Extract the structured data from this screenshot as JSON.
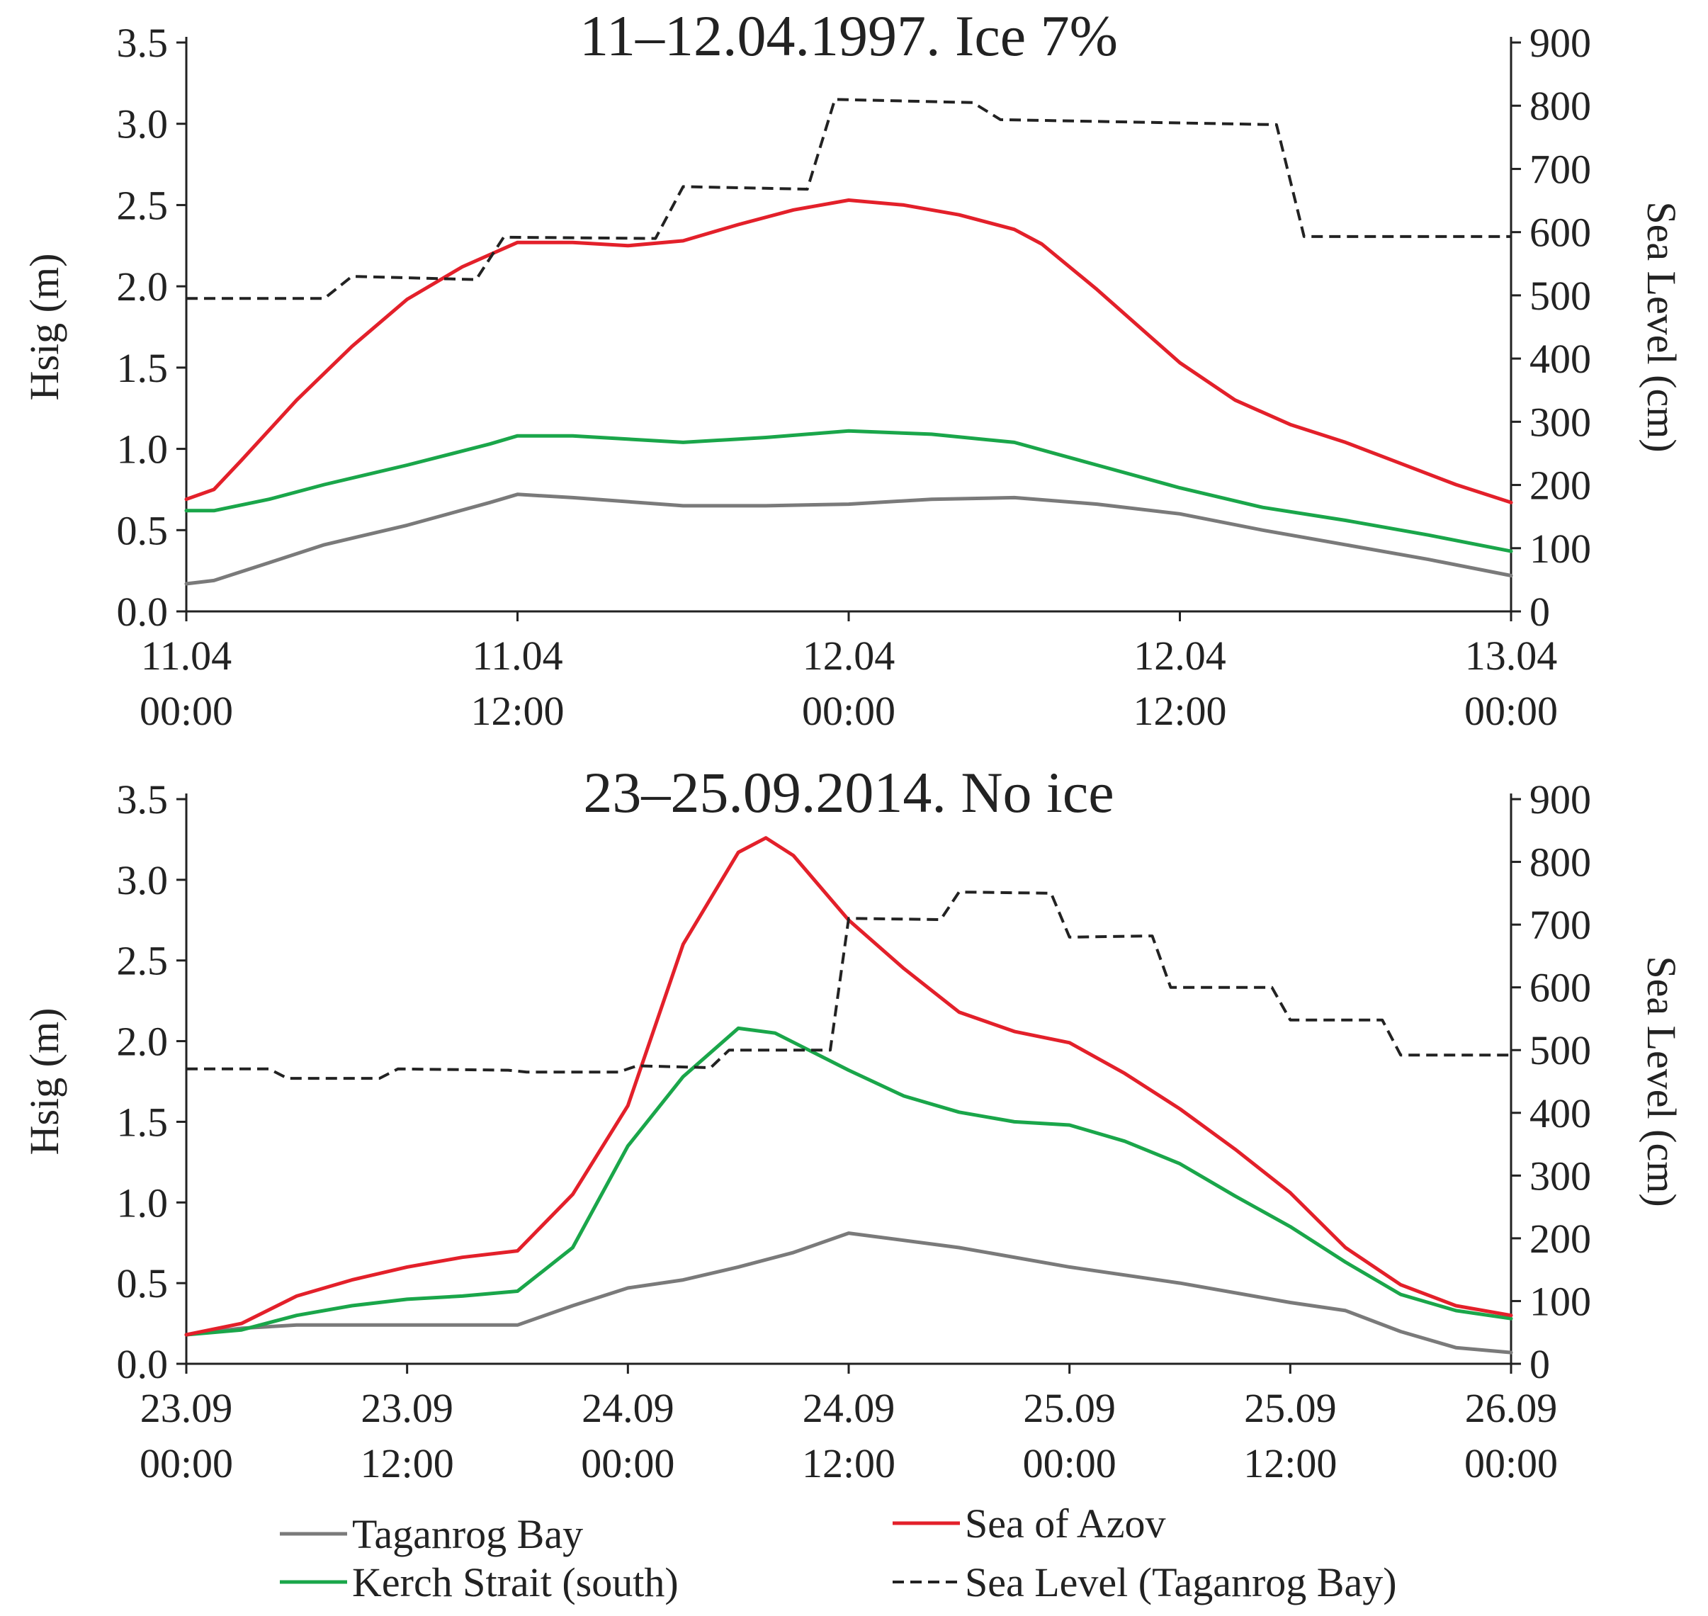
{
  "chart_data": [
    {
      "type": "line",
      "title": "11–12.04.1997. Ice 7%",
      "ylabel": "Hsig (m)",
      "y2label": "Sea Level (cm)",
      "ylim": [
        0,
        3.5
      ],
      "y2lim": [
        0,
        900
      ],
      "yticks": [
        "0.0",
        "0.5",
        "1.0",
        "1.5",
        "2.0",
        "2.5",
        "3.0",
        "3.5"
      ],
      "y2ticks": [
        "0",
        "100",
        "200",
        "300",
        "400",
        "500",
        "600",
        "700",
        "800",
        "900"
      ],
      "xlim": [
        0,
        48
      ],
      "xticks": [
        {
          "line1": "11.04",
          "line2": "00:00"
        },
        {
          "line1": "11.04",
          "line2": "12:00"
        },
        {
          "line1": "12.04",
          "line2": "00:00"
        },
        {
          "line1": "12.04",
          "line2": "12:00"
        },
        {
          "line1": "13.04",
          "line2": "00:00"
        }
      ],
      "grid": false,
      "series": [
        {
          "name": "Taganrog Bay",
          "color": "#7a7a7a",
          "axis": "left",
          "dashed": false,
          "x": [
            0,
            1,
            3,
            5,
            8,
            11,
            12,
            14,
            18,
            21,
            24,
            27,
            30,
            33,
            36,
            39,
            42,
            45,
            48
          ],
          "y": [
            0.17,
            0.19,
            0.3,
            0.41,
            0.53,
            0.67,
            0.72,
            0.7,
            0.65,
            0.65,
            0.66,
            0.69,
            0.7,
            0.66,
            0.6,
            0.5,
            0.41,
            0.32,
            0.22
          ]
        },
        {
          "name": "Kerch Strait (south)",
          "color": "#1aa64a",
          "axis": "left",
          "dashed": false,
          "x": [
            0,
            1,
            3,
            5,
            8,
            11,
            12,
            14,
            18,
            21,
            24,
            27,
            30,
            33,
            36,
            39,
            42,
            45,
            48
          ],
          "y": [
            0.62,
            0.62,
            0.69,
            0.78,
            0.9,
            1.03,
            1.08,
            1.08,
            1.04,
            1.07,
            1.11,
            1.09,
            1.04,
            0.9,
            0.76,
            0.64,
            0.56,
            0.47,
            0.37
          ]
        },
        {
          "name": "Sea of Azov",
          "color": "#e3202a",
          "axis": "left",
          "dashed": false,
          "x": [
            0,
            1,
            2,
            4,
            6,
            8,
            10,
            12,
            14,
            16,
            18,
            20,
            22,
            24,
            26,
            28,
            30,
            31,
            33,
            35,
            36,
            38,
            40,
            42,
            44,
            46,
            48
          ],
          "y": [
            0.69,
            0.75,
            0.93,
            1.3,
            1.63,
            1.92,
            2.12,
            2.27,
            2.27,
            2.25,
            2.28,
            2.38,
            2.47,
            2.53,
            2.5,
            2.44,
            2.35,
            2.26,
            1.98,
            1.68,
            1.53,
            1.3,
            1.15,
            1.04,
            0.91,
            0.78,
            0.67
          ]
        },
        {
          "name": "Sea Level (Taganrog Bay)",
          "color": "#222222",
          "axis": "right",
          "dashed": true,
          "x": [
            0,
            5,
            6,
            10.5,
            11.5,
            17,
            18,
            22.5,
            23.5,
            28.5,
            29.5,
            39.5,
            40.5,
            48
          ],
          "y": [
            495,
            495,
            530,
            525,
            592,
            590,
            672,
            668,
            810,
            805,
            778,
            770,
            593,
            593
          ]
        }
      ]
    },
    {
      "type": "line",
      "title": "23–25.09.2014. No ice",
      "ylabel": "Hsig (m)",
      "y2label": "Sea Level (cm)",
      "ylim": [
        0,
        3.5
      ],
      "y2lim": [
        0,
        900
      ],
      "yticks": [
        "0.0",
        "0.5",
        "1.0",
        "1.5",
        "2.0",
        "2.5",
        "3.0",
        "3.5"
      ],
      "y2ticks": [
        "0",
        "100",
        "200",
        "300",
        "400",
        "500",
        "600",
        "700",
        "800",
        "900"
      ],
      "xlim": [
        0,
        72
      ],
      "xticks": [
        {
          "line1": "23.09",
          "line2": "00:00"
        },
        {
          "line1": "23.09",
          "line2": "12:00"
        },
        {
          "line1": "24.09",
          "line2": "00:00"
        },
        {
          "line1": "24.09",
          "line2": "12:00"
        },
        {
          "line1": "25.09",
          "line2": "00:00"
        },
        {
          "line1": "25.09",
          "line2": "12:00"
        },
        {
          "line1": "26.09",
          "line2": "00:00"
        }
      ],
      "grid": false,
      "series": [
        {
          "name": "Taganrog Bay",
          "color": "#7a7a7a",
          "axis": "left",
          "dashed": false,
          "x": [
            0,
            3,
            6,
            12,
            18,
            21,
            24,
            27,
            30,
            33,
            36,
            42,
            48,
            54,
            60,
            63,
            66,
            69,
            72
          ],
          "y": [
            0.18,
            0.22,
            0.24,
            0.24,
            0.24,
            0.36,
            0.47,
            0.52,
            0.6,
            0.69,
            0.81,
            0.72,
            0.6,
            0.5,
            0.38,
            0.33,
            0.2,
            0.1,
            0.07
          ]
        },
        {
          "name": "Kerch Strait (south)",
          "color": "#1aa64a",
          "axis": "left",
          "dashed": false,
          "x": [
            0,
            3,
            6,
            9,
            12,
            15,
            18,
            21,
            24,
            27,
            30,
            32,
            36,
            39,
            42,
            45,
            48,
            51,
            54,
            57,
            60,
            63,
            66,
            69,
            72
          ],
          "y": [
            0.18,
            0.21,
            0.3,
            0.36,
            0.4,
            0.42,
            0.45,
            0.72,
            1.35,
            1.78,
            2.08,
            2.05,
            1.82,
            1.66,
            1.56,
            1.5,
            1.48,
            1.38,
            1.24,
            1.04,
            0.85,
            0.63,
            0.43,
            0.33,
            0.28
          ]
        },
        {
          "name": "Sea of Azov",
          "color": "#e3202a",
          "axis": "left",
          "dashed": false,
          "x": [
            0,
            3,
            6,
            9,
            12,
            15,
            18,
            21,
            24,
            27,
            30,
            31.5,
            33,
            36,
            39,
            42,
            45,
            48,
            51,
            54,
            57,
            60,
            63,
            66,
            69,
            72
          ],
          "y": [
            0.18,
            0.25,
            0.42,
            0.52,
            0.6,
            0.66,
            0.7,
            1.05,
            1.6,
            2.6,
            3.17,
            3.26,
            3.15,
            2.75,
            2.45,
            2.18,
            2.06,
            1.99,
            1.8,
            1.58,
            1.33,
            1.06,
            0.72,
            0.49,
            0.36,
            0.3
          ]
        },
        {
          "name": "Sea Level (Taganrog Bay)",
          "color": "#222222",
          "axis": "right",
          "dashed": true,
          "x": [
            0,
            4.5,
            5.5,
            10.5,
            11.5,
            17.5,
            18.5,
            23.5,
            24.5,
            28.5,
            29.5,
            35,
            36,
            41,
            42,
            47,
            48,
            52.5,
            53.5,
            59,
            60,
            65,
            66,
            72
          ],
          "y": [
            470,
            470,
            455,
            455,
            470,
            468,
            465,
            465,
            475,
            472,
            500,
            500,
            710,
            708,
            752,
            750,
            680,
            682,
            600,
            600,
            548,
            548,
            492,
            492
          ]
        }
      ]
    }
  ],
  "legend": [
    {
      "label": "Taganrog Bay",
      "color": "#7a7a7a",
      "dashed": false
    },
    {
      "label": "Sea of Azov",
      "color": "#e3202a",
      "dashed": false
    },
    {
      "label": "Kerch Strait (south)",
      "color": "#1aa64a",
      "dashed": false
    },
    {
      "label": "Sea Level (Taganrog Bay)",
      "color": "#222222",
      "dashed": true
    }
  ]
}
